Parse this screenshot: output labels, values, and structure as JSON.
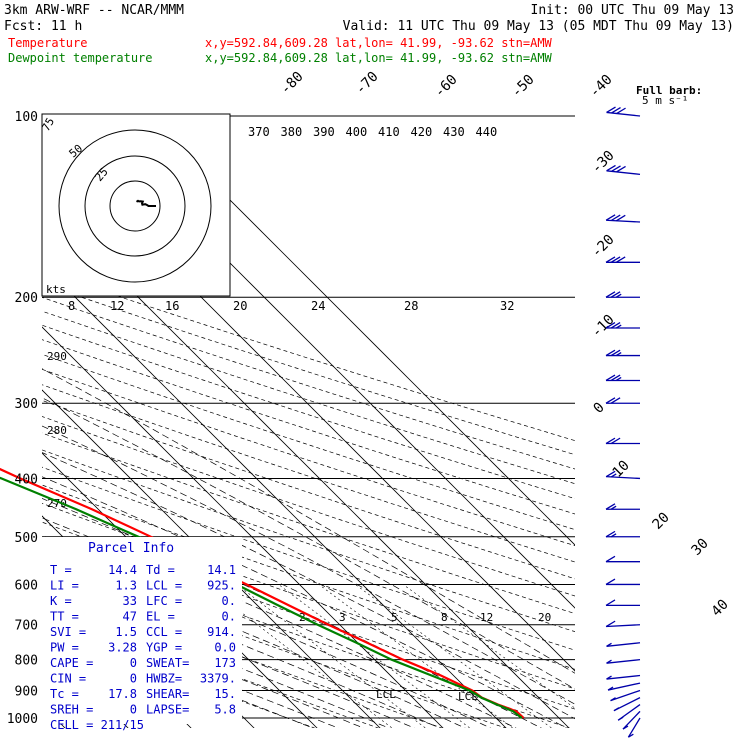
{
  "header": {
    "model": "3km ARW-WRF -- NCAR/MMM",
    "init": "Init: 00 UTC Thu 09 May 13",
    "fcst": "Fcst:    11 h",
    "valid": "Valid: 11 UTC Thu 09 May 13 (05 MDT Thu 09 May 13)",
    "temp_label": "Temperature",
    "dew_label": "Dewpoint temperature",
    "location": "x,y=592.84,609.28   lat,lon= 41.99, -93.62  stn=AMW",
    "barb_note_1": "Full barb:",
    "barb_note_2": "5 m s⁻¹"
  },
  "colors": {
    "temperature": "#ff0000",
    "dewpoint": "#008000",
    "header_text": "#000000",
    "parcel_text": "#0000cc",
    "barbs": "#0000aa",
    "background": "#ffffff"
  },
  "parcel": {
    "title": "Parcel Info",
    "rows": [
      [
        "T  =",
        "14.4",
        "Td =",
        "14.1"
      ],
      [
        "LI =",
        "1.3",
        "LCL =",
        "925."
      ],
      [
        "K  =",
        "33",
        "LFC =",
        "0."
      ],
      [
        "TT =",
        "47",
        "EL  =",
        "0."
      ],
      [
        "SVI =",
        "1.5",
        "CCL =",
        "914."
      ],
      [
        "PW =",
        "3.28",
        "YGP =",
        "0.0"
      ],
      [
        "CAPE =",
        "0",
        "SWEAT=",
        "173"
      ],
      [
        "CIN  =",
        "0",
        "HWBZ=",
        "3379."
      ],
      [
        "Tc =",
        "17.8",
        "SHEAR=",
        "15."
      ],
      [
        "SREH =",
        "0",
        "LAPSE=",
        "5.8"
      ],
      [
        "CELL = 211/15",
        "",
        "",
        ""
      ]
    ]
  },
  "hodograph": {
    "ring_labels": [
      "75",
      "50",
      "25"
    ],
    "units": "kts"
  },
  "chart_data": {
    "type": "line",
    "title": "",
    "xlabel": "",
    "ylabel": "",
    "pressure_ticks": [
      100,
      200,
      300,
      400,
      500,
      600,
      700,
      800,
      900,
      1000
    ],
    "isotherm_labels": [
      "-80",
      "-70",
      "-60",
      "-50",
      "-40",
      "-30",
      "-20",
      "-10",
      "0",
      "10",
      "20",
      "30",
      "40"
    ],
    "theta_labels": [
      "370",
      "380",
      "390",
      "400",
      "410",
      "420",
      "430",
      "440"
    ],
    "mixing_ratio_labels": [
      "8",
      "12",
      "16",
      "20",
      "24",
      "28",
      "32"
    ],
    "dry_adiabat_labels": [
      "290",
      "280",
      "270"
    ],
    "lower_mixing_labels": [
      "2",
      "3",
      "5",
      "8",
      "12",
      "20"
    ],
    "lcl_labels": [
      "LCL",
      "LCL"
    ],
    "series": [
      {
        "name": "Temperature",
        "pressure": [
          1000,
          975,
          950,
          925,
          900,
          850,
          800,
          750,
          700,
          650,
          600,
          550,
          500,
          450,
          400,
          350,
          300,
          275,
          250,
          225,
          200,
          175,
          150,
          125,
          100
        ],
        "temp_c": [
          14.4,
          14.3,
          12.5,
          11.0,
          10.6,
          8.0,
          4.5,
          1.5,
          -1.8,
          -5.0,
          -8.4,
          -12.5,
          -16.0,
          -21.0,
          -27.5,
          -34.0,
          -41.5,
          -45.3,
          -50.5,
          -53.5,
          -56.5,
          -56.0,
          -56.8,
          -58.0,
          -59.5
        ]
      },
      {
        "name": "Dewpoint temperature",
        "pressure": [
          1000,
          975,
          950,
          925,
          900,
          850,
          800,
          750,
          700,
          650,
          600,
          550,
          500,
          450,
          400,
          350,
          300,
          275,
          250,
          225,
          200,
          175,
          150,
          125,
          100
        ],
        "temp_c": [
          14.1,
          13.8,
          12.3,
          10.9,
          10.2,
          6.5,
          2.7,
          -0.2,
          -3.5,
          -6.7,
          -10.0,
          -13.7,
          -18.0,
          -23.5,
          -30.5,
          -39.5,
          -50.5,
          -57.5,
          -65.0,
          -67.5,
          -69.0,
          -68.0,
          -72.0,
          -76.0,
          -78.5
        ]
      }
    ],
    "wind_barbs": {
      "units": "m/s",
      "pressure": [
        1000,
        975,
        950,
        925,
        900,
        875,
        850,
        800,
        750,
        700,
        650,
        600,
        550,
        500,
        450,
        400,
        350,
        300,
        275,
        250,
        225,
        200,
        175,
        150,
        125,
        100
      ],
      "speed": [
        3,
        4,
        4,
        5,
        6,
        5,
        5,
        6,
        7,
        8,
        9,
        10,
        12,
        14,
        15,
        17,
        20,
        22,
        25,
        27,
        25,
        27,
        30,
        32,
        30,
        28
      ],
      "direction": [
        200,
        210,
        220,
        230,
        240,
        250,
        260,
        260,
        260,
        265,
        270,
        270,
        270,
        270,
        270,
        275,
        270,
        270,
        270,
        270,
        270,
        270,
        270,
        275,
        280,
        280
      ]
    }
  }
}
